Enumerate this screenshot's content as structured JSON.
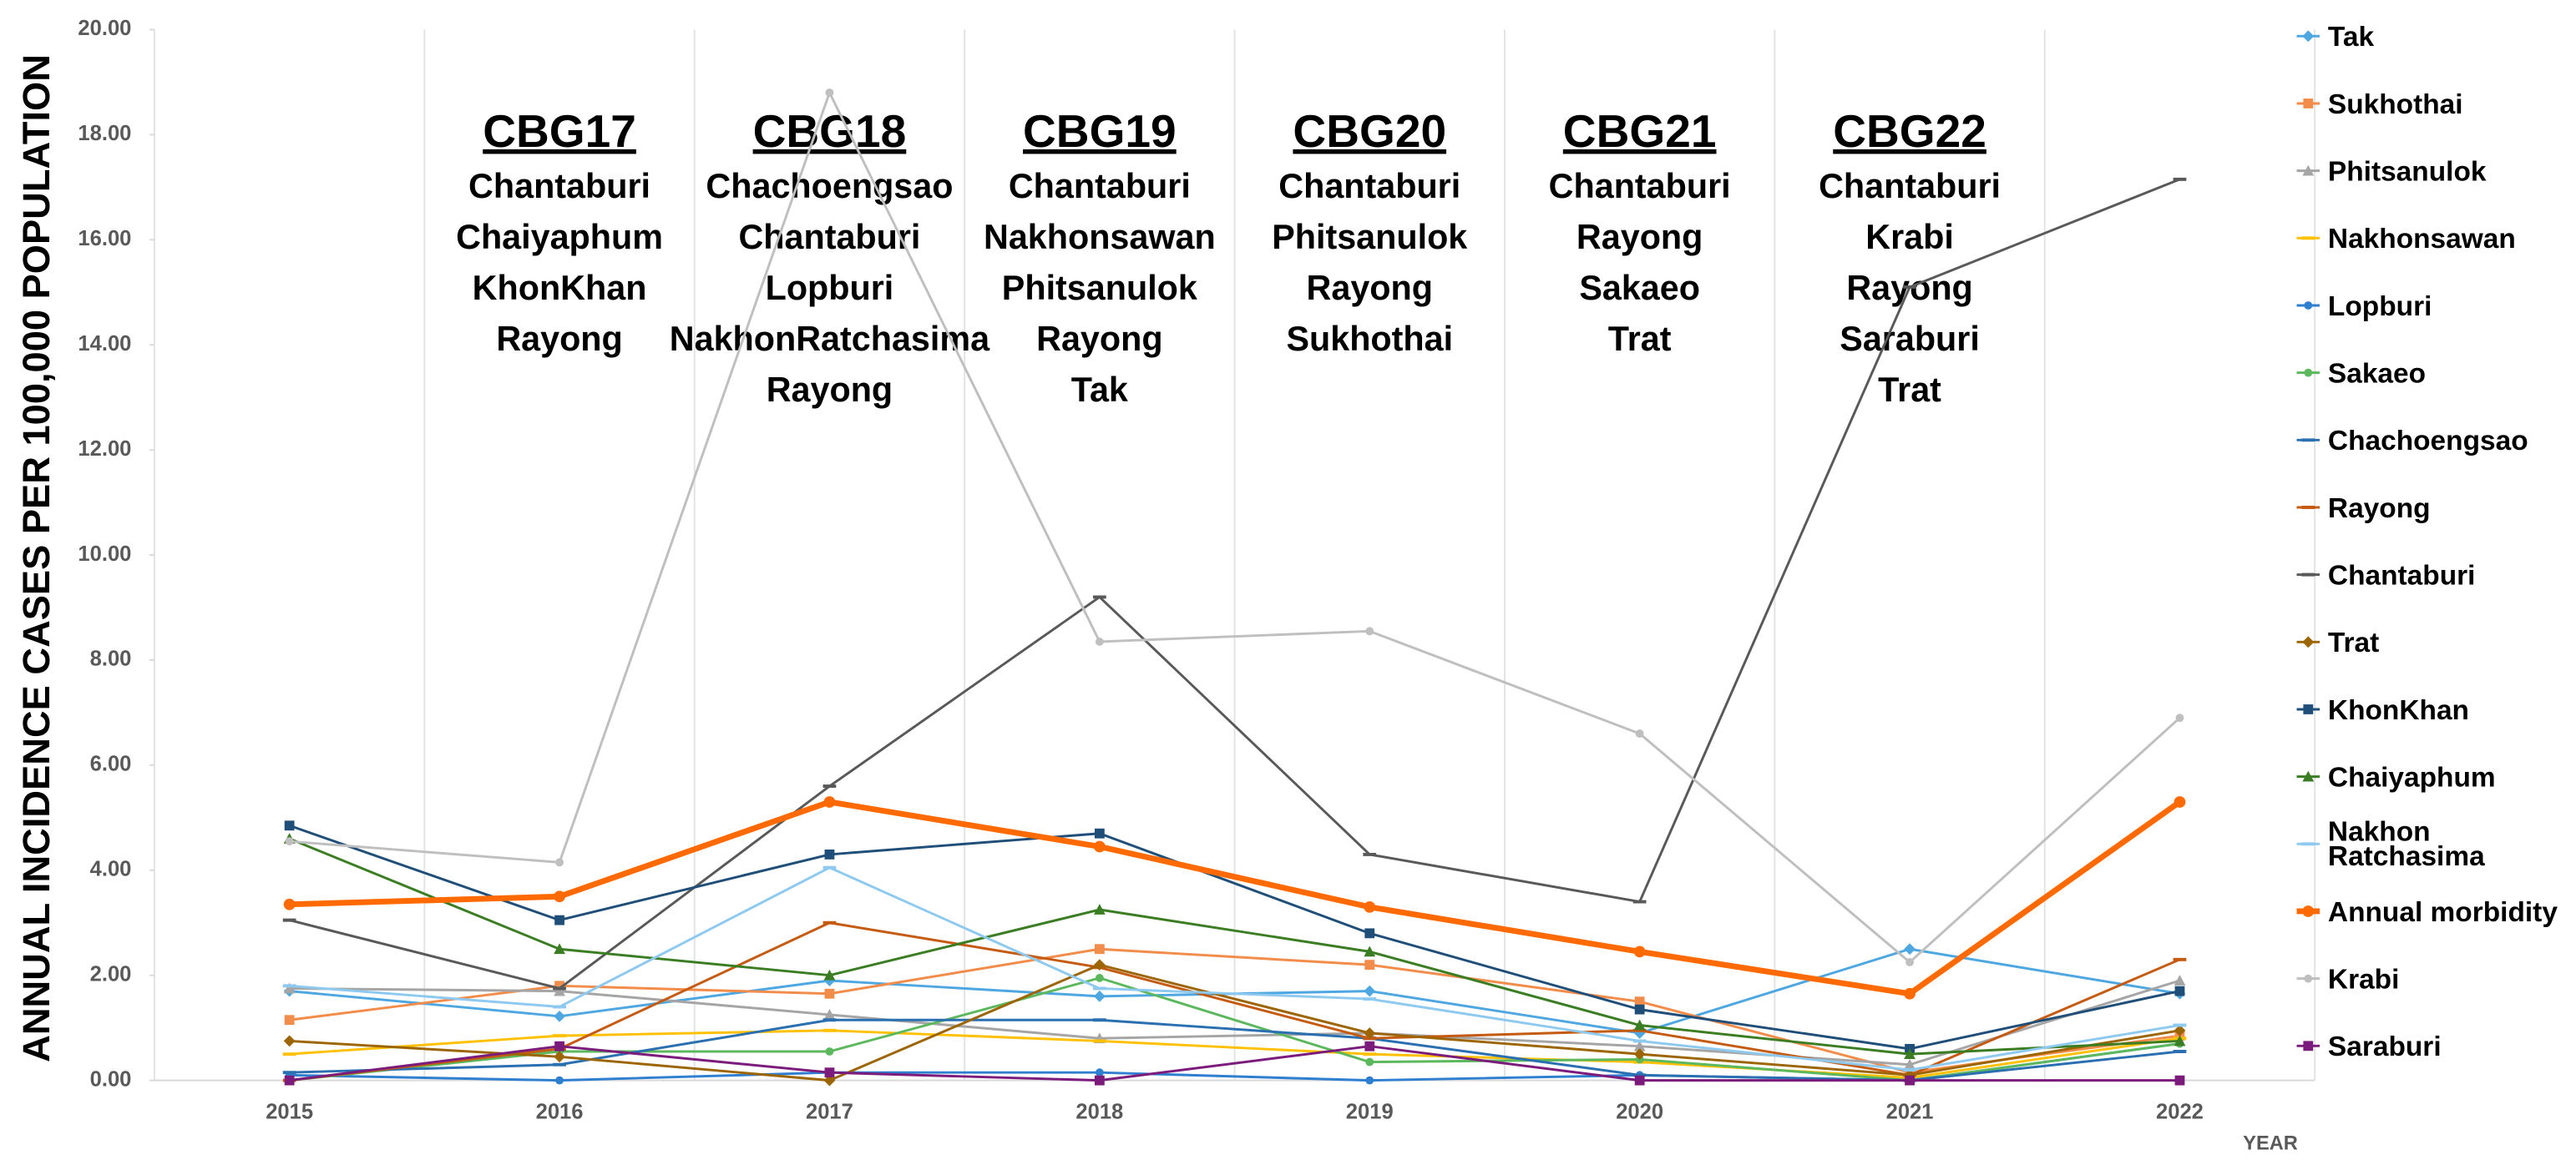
{
  "chart_data": {
    "type": "line",
    "y_label": "ANNUAL INCIDENCE CASES PER 100,000 POPULATION",
    "x_label": "YEAR",
    "categories": [
      "2015",
      "2016",
      "2017",
      "2018",
      "2019",
      "2020",
      "2021",
      "2022"
    ],
    "ylim": [
      0,
      20
    ],
    "yticks": [
      {
        "value": 0,
        "label": "0.00"
      },
      {
        "value": 2,
        "label": "2.00"
      },
      {
        "value": 4,
        "label": "4.00"
      },
      {
        "value": 6,
        "label": "6.00"
      },
      {
        "value": 8,
        "label": "8.00"
      },
      {
        "value": 10,
        "label": "10.00"
      },
      {
        "value": 12,
        "label": "12.00"
      },
      {
        "value": 14,
        "label": "14.00"
      },
      {
        "value": 16,
        "label": "16.00"
      },
      {
        "value": 18,
        "label": "18.00"
      },
      {
        "value": 20,
        "label": "20.00"
      }
    ],
    "grid": "vertical",
    "legend": "right",
    "series": [
      {
        "name": "Tak",
        "color": "#4ea7e0",
        "marker": "diamond",
        "values": [
          1.7,
          1.22,
          1.9,
          1.6,
          1.7,
          0.9,
          2.5,
          1.65
        ]
      },
      {
        "name": "Sukhothai",
        "color": "#f28c4a",
        "marker": "square",
        "values": [
          1.15,
          1.8,
          1.65,
          2.5,
          2.2,
          1.5,
          0.15,
          0.85
        ]
      },
      {
        "name": "Phitsanulok",
        "color": "#a5a5a5",
        "marker": "triangle",
        "values": [
          1.75,
          1.7,
          1.25,
          0.8,
          0.9,
          0.65,
          0.3,
          1.9
        ]
      },
      {
        "name": "Nakhonsawan",
        "color": "#ffc000",
        "marker": "dash",
        "values": [
          0.5,
          0.85,
          0.95,
          0.75,
          0.5,
          0.35,
          0.05,
          0.8
        ]
      },
      {
        "name": "Lopburi",
        "color": "#2f7fd0",
        "marker": "circle",
        "values": [
          0.1,
          0.0,
          0.15,
          0.15,
          0.0,
          0.1,
          0.0,
          0.7
        ]
      },
      {
        "name": "Sakaeo",
        "color": "#5cb85c",
        "marker": "circle",
        "values": [
          0.0,
          0.55,
          0.55,
          1.95,
          0.35,
          0.4,
          0.0,
          0.7
        ]
      },
      {
        "name": "Chachoengsao",
        "color": "#2a6fb0",
        "marker": "dash",
        "values": [
          0.15,
          0.3,
          1.15,
          1.15,
          0.8,
          0.1,
          0.0,
          0.55
        ]
      },
      {
        "name": "Rayong",
        "color": "#c55a11",
        "marker": "dash",
        "values": [
          0.0,
          0.6,
          3.0,
          2.15,
          0.8,
          0.95,
          0.1,
          2.3
        ]
      },
      {
        "name": "Chantaburi",
        "color": "#595959",
        "marker": "dash",
        "values": [
          3.05,
          1.75,
          5.6,
          9.2,
          4.3,
          3.4,
          15.1,
          17.15
        ]
      },
      {
        "name": "Trat",
        "color": "#9c6500",
        "marker": "diamond",
        "values": [
          0.75,
          0.45,
          0.0,
          2.2,
          0.9,
          0.5,
          0.1,
          0.95
        ]
      },
      {
        "name": "KhonKhan",
        "color": "#1f4e79",
        "marker": "square",
        "values": [
          4.85,
          3.05,
          4.3,
          4.7,
          2.8,
          1.35,
          0.6,
          1.7
        ]
      },
      {
        "name": "Chaiyaphum",
        "color": "#3a7d22",
        "marker": "triangle",
        "values": [
          4.6,
          2.5,
          2.0,
          3.25,
          2.45,
          1.05,
          0.5,
          0.75
        ]
      },
      {
        "name": "Nakhon Ratchasima",
        "color": "#8ec9f0",
        "marker": "dash",
        "values": [
          1.8,
          1.4,
          4.05,
          1.75,
          1.55,
          0.75,
          0.2,
          1.05
        ]
      },
      {
        "name": "Annual morbidity",
        "color": "#ff6a00",
        "marker": "circle",
        "width": 3.5,
        "values": [
          3.35,
          3.5,
          5.3,
          4.45,
          3.3,
          2.45,
          1.65,
          5.3
        ]
      },
      {
        "name": "Krabi",
        "color": "#bfbfbf",
        "marker": "circle",
        "values": [
          4.55,
          4.15,
          18.8,
          8.35,
          8.55,
          6.6,
          2.25,
          6.9
        ]
      },
      {
        "name": "Saraburi",
        "color": "#7b1b7b",
        "marker": "square",
        "values": [
          0.0,
          0.65,
          0.15,
          0.0,
          0.65,
          0.0,
          0.0,
          0.0
        ]
      }
    ],
    "annotations": [
      {
        "title": "CBG17",
        "lines": [
          "Chantaburi",
          "Chaiyaphum",
          "KhonKhan",
          "Rayong"
        ]
      },
      {
        "title": "CBG18",
        "lines": [
          "Chachoengsao",
          "Chantaburi",
          "Lopburi",
          "NakhonRatchasima",
          "Rayong"
        ]
      },
      {
        "title": "CBG19",
        "lines": [
          "Chantaburi",
          "Nakhonsawan",
          "Phitsanulok",
          "Rayong",
          "Tak"
        ]
      },
      {
        "title": "CBG20",
        "lines": [
          "Chantaburi",
          "Phitsanulok",
          "Rayong",
          "Sukhothai"
        ]
      },
      {
        "title": "CBG21",
        "lines": [
          "Chantaburi",
          "Rayong",
          "Sakaeo",
          "Trat"
        ]
      },
      {
        "title": "CBG22",
        "lines": [
          "Chantaburi",
          "Krabi",
          "Rayong",
          "Saraburi",
          "Trat"
        ]
      }
    ]
  }
}
